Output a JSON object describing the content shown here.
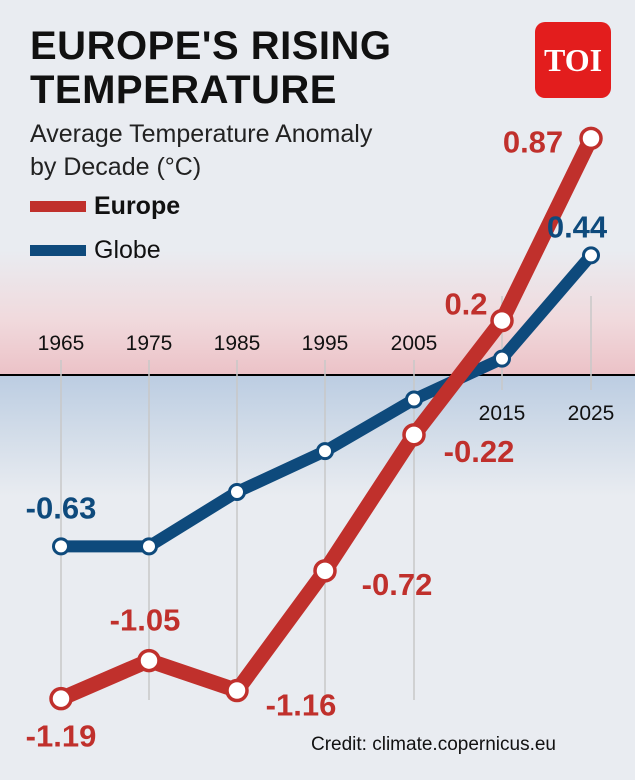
{
  "header": {
    "title_part1": "EUROPE'S",
    "title_part2": "RISING",
    "title_part3": "TEMPERATURE",
    "subtitle": "Average Temperature Anomaly by Decade (°C)",
    "logo_text": "TOI"
  },
  "colors": {
    "europe": "#c0302c",
    "globe": "#0e4a7c",
    "logo": "#e31d1d"
  },
  "credit": "Credit: climate.copernicus.eu",
  "chart_data": {
    "type": "line",
    "x": [
      "1965",
      "1975",
      "1985",
      "1995",
      "2005",
      "2015",
      "2025"
    ],
    "series": [
      {
        "name": "Europe",
        "values": [
          -1.19,
          -1.05,
          -1.16,
          -0.72,
          -0.22,
          0.2,
          0.87
        ]
      },
      {
        "name": "Globe",
        "values": [
          -0.63,
          -0.63,
          -0.43,
          -0.28,
          -0.09,
          0.06,
          0.44
        ]
      }
    ],
    "data_labels": {
      "Europe": [
        "-1.19",
        "-1.05",
        "-1.16",
        "-0.72",
        "-0.22",
        "0.2",
        "0.87"
      ],
      "Globe": [
        "-0.63",
        "",
        "",
        "",
        "",
        "",
        "0.44"
      ]
    },
    "title": "EUROPE'S RISING TEMPERATURE",
    "ylabel": "Average Temperature Anomaly by Decade (°C)",
    "ylim": [
      -1.3,
      1.0
    ],
    "legend": "top-left",
    "grid": false
  }
}
